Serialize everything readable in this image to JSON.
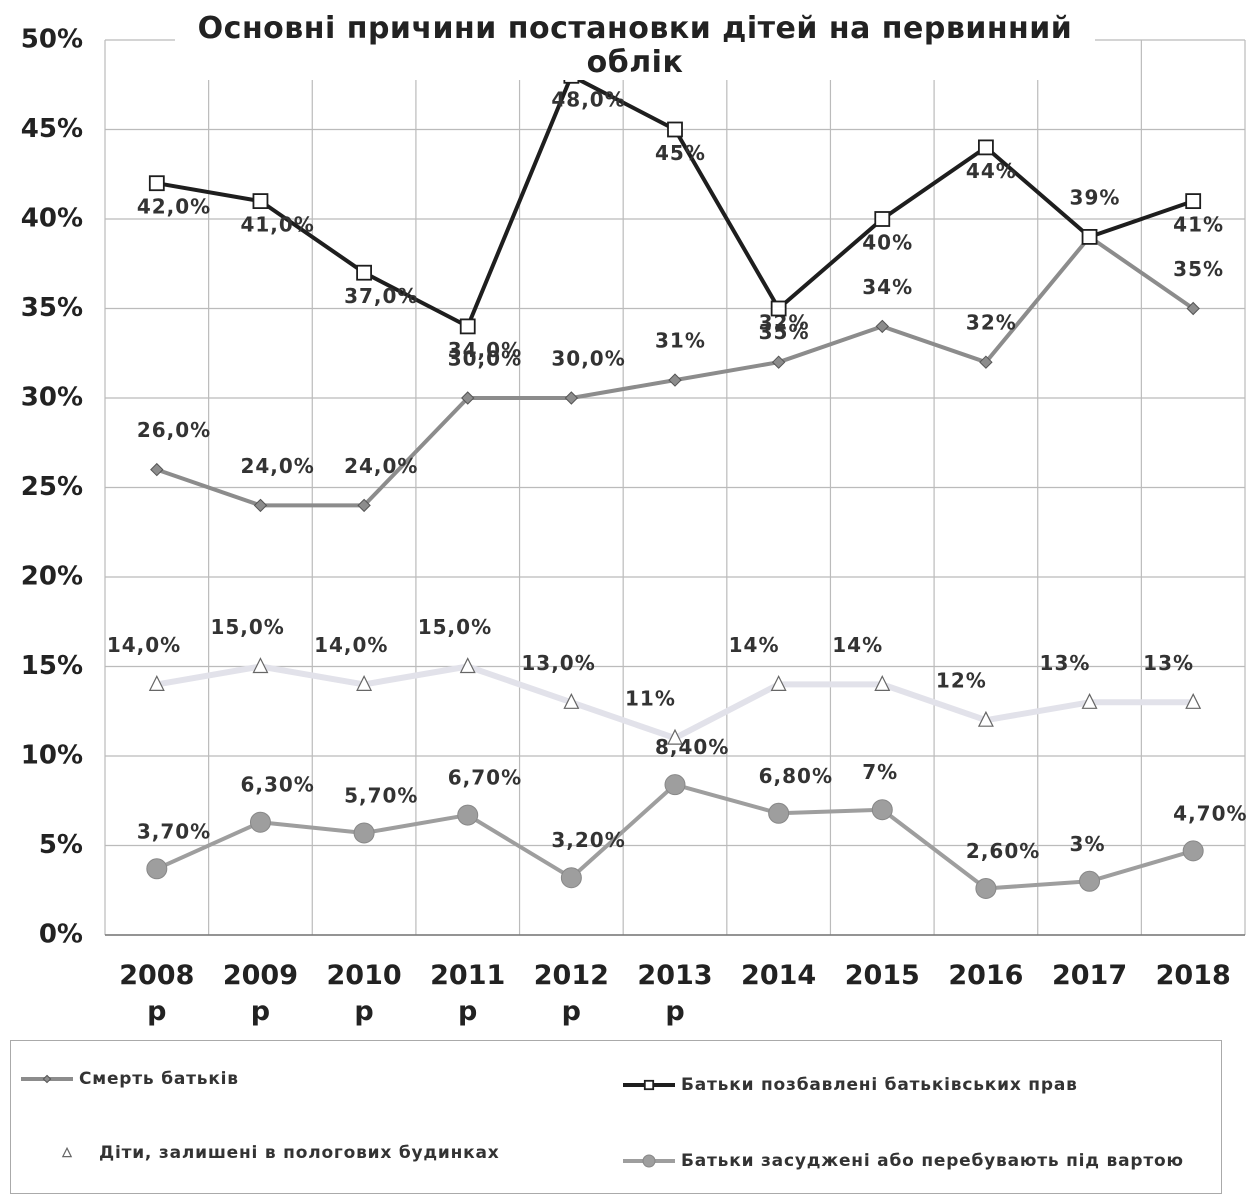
{
  "chart_data": {
    "type": "line",
    "title": "Основні причини постановки дітей на первинний облік",
    "categories": [
      "2008 р",
      "2009 р",
      "2010 р",
      "2011 р",
      "2012 р",
      "2013 р",
      "2014",
      "2015",
      "2016",
      "2017",
      "2018"
    ],
    "ylim": [
      0,
      50
    ],
    "yticks": [
      {
        "value": 0,
        "label": "0%"
      },
      {
        "value": 5,
        "label": "5%"
      },
      {
        "value": 10,
        "label": "10%"
      },
      {
        "value": 15,
        "label": "15%"
      },
      {
        "value": 20,
        "label": "20%"
      },
      {
        "value": 25,
        "label": "25%"
      },
      {
        "value": 30,
        "label": "30%"
      },
      {
        "value": 35,
        "label": "35%"
      },
      {
        "value": 40,
        "label": "40%"
      },
      {
        "value": 45,
        "label": "45%"
      },
      {
        "value": 50,
        "label": "50%"
      }
    ],
    "grid": true,
    "series": [
      {
        "name": "Смерть батьків",
        "color": "#8c8c8c",
        "marker": "diamond",
        "values": [
          26,
          24,
          24,
          30,
          30,
          31,
          32,
          34,
          32,
          39,
          35
        ],
        "value_labels": [
          "26,0%",
          "24,0%",
          "24,0%",
          "30,0%",
          "30,0%",
          "31%",
          "32%",
          "34%",
          "32%",
          "39%",
          "35%"
        ]
      },
      {
        "name": "Батьки позбавлені батьківських прав",
        "color": "#1e1e1e",
        "marker": "square",
        "values": [
          42,
          41,
          37,
          34,
          48,
          45,
          35,
          40,
          44,
          39,
          41
        ],
        "value_labels": [
          "42,0%",
          "41,0%",
          "37,0%",
          "34,0%",
          "48,0%",
          "45%",
          "35%",
          "40%",
          "44%",
          null,
          "41%"
        ]
      },
      {
        "name": "Діти, залишені в пологових будинках",
        "color": "#e2e2ea",
        "marker": "triangle",
        "values": [
          14,
          15,
          14,
          15,
          13,
          11,
          14,
          14,
          12,
          13,
          13
        ],
        "value_labels": [
          "14,0%",
          "15,0%",
          "14,0%",
          "15,0%",
          "13,0%",
          "11%",
          "14%",
          "14%",
          "12%",
          "13%",
          "13%"
        ]
      },
      {
        "name": "Батьки засуджені або перебувають під вартою",
        "color": "#9e9e9e",
        "marker": "circle",
        "values": [
          3.7,
          6.3,
          5.7,
          6.7,
          3.2,
          8.4,
          6.8,
          7,
          2.6,
          3,
          4.7
        ],
        "value_labels": [
          "3,70%",
          "6,30%",
          "5,70%",
          "6,70%",
          "3,20%",
          "8,40%",
          "6,80%",
          "7%",
          "2,60%",
          "3%",
          "4,70%"
        ]
      }
    ]
  }
}
